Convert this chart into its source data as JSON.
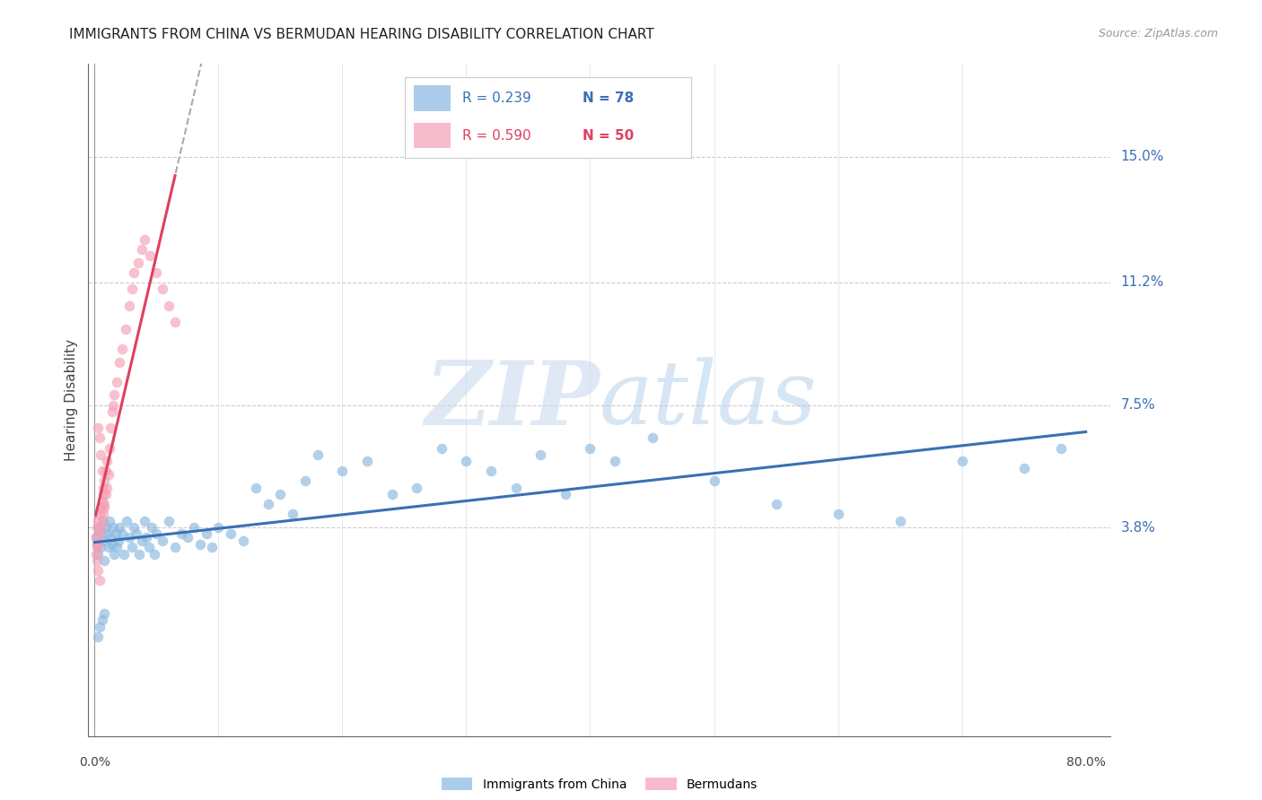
{
  "title": "IMMIGRANTS FROM CHINA VS BERMUDAN HEARING DISABILITY CORRELATION CHART",
  "source": "Source: ZipAtlas.com",
  "ylabel": "Hearing Disability",
  "xlim": [
    -0.005,
    0.82
  ],
  "ylim": [
    -0.025,
    0.178
  ],
  "grid_color": "#cccccc",
  "background_color": "#ffffff",
  "blue_color": "#89b8e0",
  "pink_color": "#f4a0b5",
  "blue_line_color": "#3a70b5",
  "pink_line_color": "#e04060",
  "watermark_zip": "ZIP",
  "watermark_atlas": "atlas",
  "legend_r_blue": "R = 0.239",
  "legend_n_blue": "N = 78",
  "legend_r_pink": "R = 0.590",
  "legend_n_pink": "N = 50",
  "legend_label_blue": "Immigrants from China",
  "legend_label_pink": "Bermudans",
  "ytick_vals": [
    0.038,
    0.075,
    0.112,
    0.15
  ],
  "ytick_labels": [
    "3.8%",
    "7.5%",
    "11.2%",
    "15.0%"
  ],
  "blue_scatter_x": [
    0.001,
    0.002,
    0.003,
    0.004,
    0.005,
    0.005,
    0.006,
    0.007,
    0.008,
    0.009,
    0.01,
    0.011,
    0.012,
    0.013,
    0.014,
    0.015,
    0.016,
    0.017,
    0.018,
    0.019,
    0.02,
    0.022,
    0.024,
    0.026,
    0.028,
    0.03,
    0.032,
    0.034,
    0.036,
    0.038,
    0.04,
    0.042,
    0.044,
    0.046,
    0.048,
    0.05,
    0.055,
    0.06,
    0.065,
    0.07,
    0.075,
    0.08,
    0.085,
    0.09,
    0.095,
    0.1,
    0.11,
    0.12,
    0.13,
    0.14,
    0.15,
    0.16,
    0.17,
    0.18,
    0.2,
    0.22,
    0.24,
    0.26,
    0.28,
    0.3,
    0.32,
    0.34,
    0.36,
    0.38,
    0.4,
    0.42,
    0.45,
    0.5,
    0.55,
    0.6,
    0.65,
    0.7,
    0.75,
    0.78,
    0.003,
    0.004,
    0.006,
    0.008
  ],
  "blue_scatter_y": [
    0.035,
    0.033,
    0.03,
    0.038,
    0.036,
    0.032,
    0.034,
    0.04,
    0.028,
    0.038,
    0.036,
    0.032,
    0.04,
    0.035,
    0.033,
    0.038,
    0.03,
    0.036,
    0.032,
    0.034,
    0.038,
    0.036,
    0.03,
    0.04,
    0.035,
    0.032,
    0.038,
    0.036,
    0.03,
    0.034,
    0.04,
    0.035,
    0.032,
    0.038,
    0.03,
    0.036,
    0.034,
    0.04,
    0.032,
    0.036,
    0.035,
    0.038,
    0.033,
    0.036,
    0.032,
    0.038,
    0.036,
    0.034,
    0.05,
    0.045,
    0.048,
    0.042,
    0.052,
    0.06,
    0.055,
    0.058,
    0.048,
    0.05,
    0.062,
    0.058,
    0.055,
    0.05,
    0.06,
    0.048,
    0.062,
    0.058,
    0.065,
    0.052,
    0.045,
    0.042,
    0.04,
    0.058,
    0.056,
    0.062,
    0.005,
    0.008,
    0.01,
    0.012
  ],
  "pink_scatter_x": [
    0.001,
    0.002,
    0.002,
    0.003,
    0.003,
    0.004,
    0.004,
    0.005,
    0.005,
    0.006,
    0.006,
    0.007,
    0.007,
    0.008,
    0.008,
    0.009,
    0.009,
    0.01,
    0.01,
    0.011,
    0.012,
    0.013,
    0.014,
    0.015,
    0.016,
    0.018,
    0.02,
    0.022,
    0.025,
    0.028,
    0.03,
    0.032,
    0.035,
    0.038,
    0.04,
    0.045,
    0.05,
    0.055,
    0.06,
    0.065,
    0.003,
    0.004,
    0.005,
    0.006,
    0.007,
    0.008,
    0.001,
    0.002,
    0.003,
    0.004
  ],
  "pink_scatter_y": [
    0.035,
    0.032,
    0.038,
    0.033,
    0.04,
    0.036,
    0.042,
    0.038,
    0.044,
    0.04,
    0.046,
    0.042,
    0.048,
    0.044,
    0.052,
    0.048,
    0.055,
    0.05,
    0.058,
    0.054,
    0.062,
    0.068,
    0.073,
    0.075,
    0.078,
    0.082,
    0.088,
    0.092,
    0.098,
    0.105,
    0.11,
    0.115,
    0.118,
    0.122,
    0.125,
    0.12,
    0.115,
    0.11,
    0.105,
    0.1,
    0.068,
    0.065,
    0.06,
    0.055,
    0.05,
    0.045,
    0.03,
    0.028,
    0.025,
    0.022
  ],
  "marker_size": 70,
  "marker_alpha": 0.65
}
